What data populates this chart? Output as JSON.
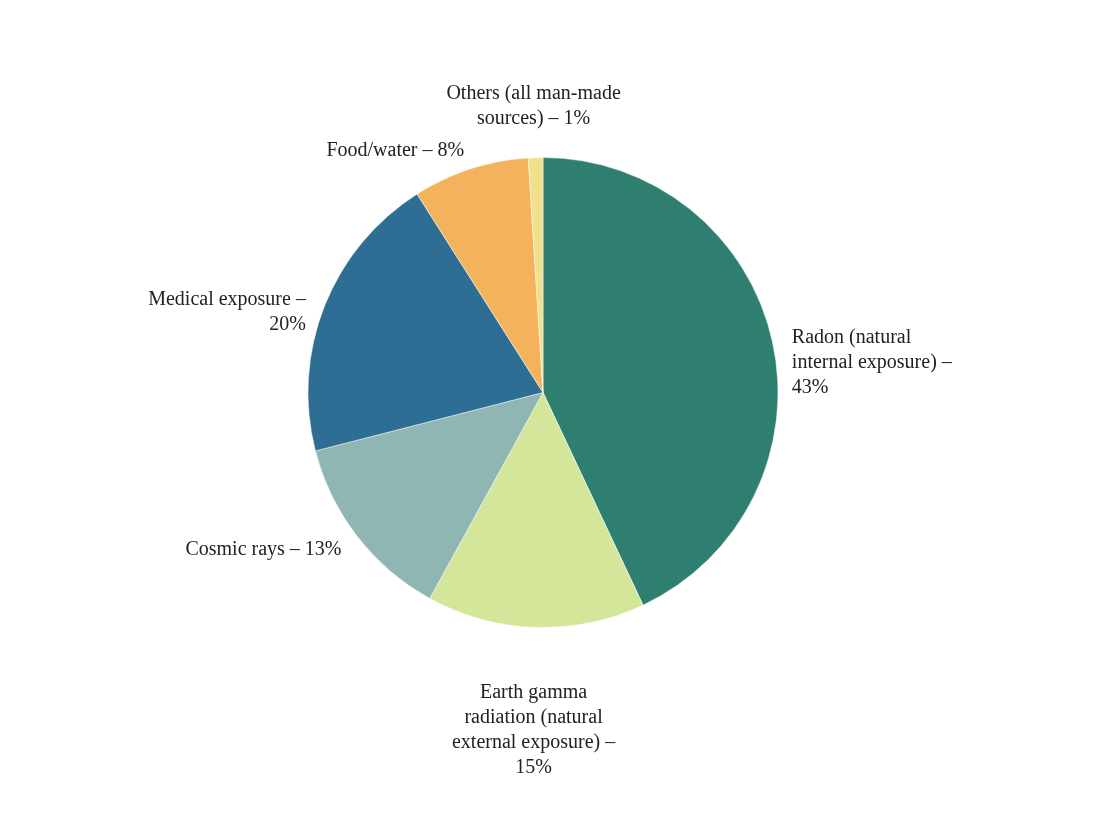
{
  "chart_data": {
    "type": "pie",
    "categories": [
      "Radon (natural internal exposure) – 43%",
      "Earth gamma radiation (natural external exposure) – 15%",
      "Cosmic rays – 13%",
      "Medical exposure – 20%",
      "Food/water – 8%",
      "Others (all man-made sources) – 1%"
    ],
    "values": [
      43,
      15,
      13,
      20,
      8,
      1
    ],
    "colors": [
      "#2f7f70",
      "#d3e69a",
      "#8fb6b2",
      "#2f6e94",
      "#f4b25c",
      "#f1e08c"
    ],
    "legend": false
  }
}
